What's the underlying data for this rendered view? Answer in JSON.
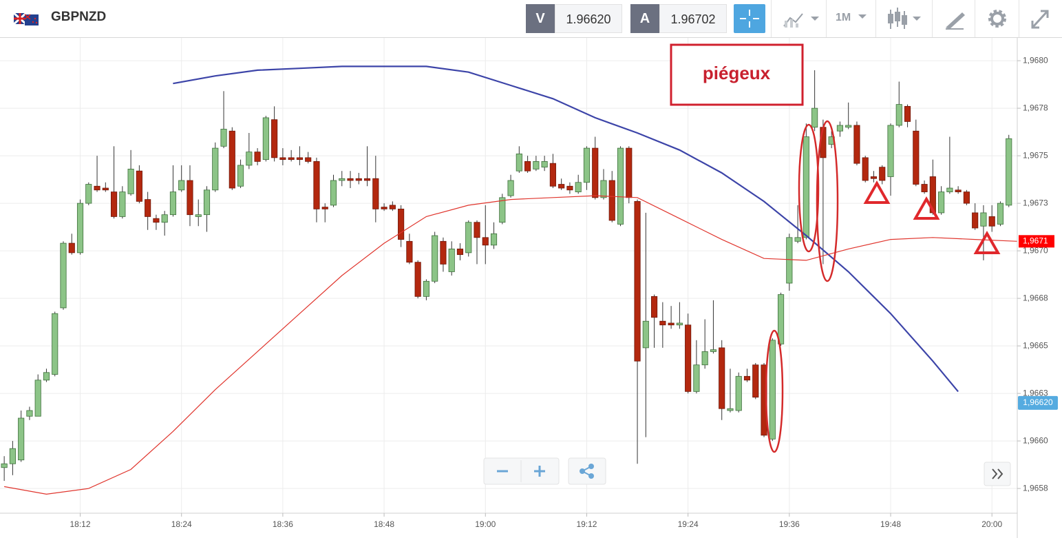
{
  "header": {
    "symbol": "GBPNZD",
    "bid_label": "V",
    "bid": "1.96620",
    "ask_label": "A",
    "ask": "1.96702",
    "timeframe": "1M"
  },
  "chart_data": {
    "type": "candlestick",
    "x": [
      "18:03",
      "18:04",
      "18:05",
      "18:06",
      "18:07",
      "18:08",
      "18:09",
      "18:10",
      "18:11",
      "18:12",
      "18:13",
      "18:14",
      "18:15",
      "18:16",
      "18:17",
      "18:18",
      "18:19",
      "18:20",
      "18:21",
      "18:22",
      "18:23",
      "18:24",
      "18:25",
      "18:26",
      "18:27",
      "18:28",
      "18:29",
      "18:30",
      "18:31",
      "18:32",
      "18:33",
      "18:34",
      "18:35",
      "18:36",
      "18:37",
      "18:38",
      "18:39",
      "18:40",
      "18:41",
      "18:42",
      "18:43",
      "18:44",
      "18:45",
      "18:46",
      "18:47",
      "18:48",
      "18:49",
      "18:50",
      "18:51",
      "18:52",
      "18:53",
      "18:54",
      "18:55",
      "18:56",
      "18:57",
      "18:58",
      "18:59",
      "19:00",
      "19:01",
      "19:02",
      "19:03",
      "19:04",
      "19:05",
      "19:06",
      "19:07",
      "19:08",
      "19:09",
      "19:10",
      "19:11",
      "19:12",
      "19:13",
      "19:14",
      "19:15",
      "19:16",
      "19:17",
      "19:18",
      "19:19",
      "19:20",
      "19:21",
      "19:22",
      "19:23",
      "19:24",
      "19:25",
      "19:26",
      "19:27",
      "19:28",
      "19:29",
      "19:30",
      "19:31",
      "19:32",
      "19:33",
      "19:34",
      "19:35",
      "19:36",
      "19:37",
      "19:38",
      "19:39",
      "19:40",
      "19:41",
      "19:42",
      "19:43",
      "19:44",
      "19:45",
      "19:46",
      "19:47",
      "19:48",
      "19:49",
      "19:50",
      "19:51",
      "19:52",
      "19:53",
      "19:54",
      "19:55",
      "19:56",
      "19:57",
      "19:58",
      "19:59",
      "20:00",
      "20:01",
      "20:02"
    ],
    "open": [
      1.96586,
      1.96588,
      1.9659,
      1.96613,
      1.96613,
      1.96632,
      1.96635,
      1.9667,
      1.96704,
      1.96699,
      1.96725,
      1.96734,
      1.96733,
      1.96731,
      1.96718,
      1.9673,
      1.96742,
      1.96727,
      1.96717,
      1.96715,
      1.96719,
      1.96732,
      1.96737,
      1.96718,
      1.96719,
      1.96732,
      1.96755,
      1.96763,
      1.96734,
      1.96745,
      1.96752,
      1.96748,
      1.96769,
      1.96749,
      1.96749,
      1.96749,
      1.96749,
      1.96747,
      1.96723,
      1.96724,
      1.96737,
      1.96738,
      1.96738,
      1.96738,
      1.96738,
      1.96723,
      1.96724,
      1.96722,
      1.96705,
      1.96694,
      1.96676,
      1.96684,
      1.96705,
      1.96689,
      1.96701,
      1.96699,
      1.96715,
      1.96707,
      1.96703,
      1.96715,
      1.96729,
      1.96742,
      1.96747,
      1.96743,
      1.96744,
      1.96746,
      1.96735,
      1.96734,
      1.96731,
      1.96736,
      1.96754,
      1.96728,
      1.96737,
      1.96714,
      1.96754,
      1.96726,
      1.96649,
      1.96676,
      1.96663,
      1.96662,
      1.96661,
      1.96661,
      1.96626,
      1.9664,
      1.96647,
      1.96649,
      1.96616,
      1.96616,
      1.96634,
      1.9664,
      1.9664,
      1.96601,
      1.96651,
      1.96683,
      1.96705,
      1.96707,
      1.96765,
      1.96765,
      1.96756,
      1.96763,
      1.96765,
      1.96766,
      1.96749,
      1.96739,
      1.96744,
      1.96739,
      1.96766,
      1.96776,
      1.96763,
      1.96735,
      1.96739,
      1.9672,
      1.96731,
      1.96732,
      1.96731,
      1.9672,
      1.96713,
      1.96718,
      1.96714,
      1.96724
    ],
    "high": [
      1.96592,
      1.966,
      1.96616,
      1.96618,
      1.96635,
      1.96638,
      1.96668,
      1.96705,
      1.96709,
      1.96727,
      1.96736,
      1.9675,
      1.96736,
      1.96755,
      1.96734,
      1.96753,
      1.96745,
      1.96731,
      1.96719,
      1.96721,
      1.96745,
      1.96745,
      1.96745,
      1.96727,
      1.96734,
      1.96757,
      1.96784,
      1.96765,
      1.96748,
      1.96762,
      1.96754,
      1.96771,
      1.96776,
      1.96754,
      1.96753,
      1.96755,
      1.96752,
      1.96749,
      1.96725,
      1.9674,
      1.96742,
      1.96742,
      1.96741,
      1.96755,
      1.9675,
      1.96725,
      1.96726,
      1.96724,
      1.96709,
      1.96695,
      1.96685,
      1.9671,
      1.96707,
      1.96705,
      1.96704,
      1.96716,
      1.96716,
      1.96724,
      1.96715,
      1.9673,
      1.9674,
      1.96755,
      1.9675,
      1.9675,
      1.9675,
      1.96751,
      1.96738,
      1.96736,
      1.9674,
      1.96755,
      1.9676,
      1.96743,
      1.96742,
      1.96755,
      1.96755,
      1.96727,
      1.9672,
      1.96677,
      1.96673,
      1.96671,
      1.96673,
      1.96667,
      1.96653,
      1.96664,
      1.96674,
      1.96653,
      1.96638,
      1.96636,
      1.96638,
      1.96641,
      1.96641,
      1.96654,
      1.96678,
      1.96709,
      1.96724,
      1.96767,
      1.96795,
      1.96769,
      1.96763,
      1.96768,
      1.96778,
      1.96768,
      1.9675,
      1.96742,
      1.96745,
      1.96767,
      1.96789,
      1.96777,
      1.96769,
      1.96737,
      1.96748,
      1.96734,
      1.9676,
      1.96734,
      1.96732,
      1.96725,
      1.96724,
      1.96724,
      1.96726,
      1.96761
    ],
    "low": [
      1.96579,
      1.96582,
      1.96589,
      1.96611,
      1.96613,
      1.96631,
      1.96634,
      1.96669,
      1.96698,
      1.96698,
      1.96724,
      1.96731,
      1.96731,
      1.96717,
      1.96717,
      1.96729,
      1.96725,
      1.96711,
      1.96711,
      1.96708,
      1.96718,
      1.96731,
      1.96713,
      1.96713,
      1.9671,
      1.96731,
      1.96754,
      1.96732,
      1.96733,
      1.96743,
      1.96745,
      1.96747,
      1.96747,
      1.96745,
      1.96747,
      1.96745,
      1.96746,
      1.96715,
      1.96715,
      1.96723,
      1.96734,
      1.96733,
      1.96735,
      1.96734,
      1.96715,
      1.96721,
      1.96721,
      1.96702,
      1.96693,
      1.96675,
      1.96674,
      1.96683,
      1.96689,
      1.96687,
      1.96695,
      1.96697,
      1.96693,
      1.96693,
      1.96701,
      1.96714,
      1.96728,
      1.96741,
      1.96741,
      1.96742,
      1.96742,
      1.96733,
      1.96732,
      1.9673,
      1.9673,
      1.96732,
      1.96727,
      1.96727,
      1.96715,
      1.96713,
      1.96725,
      1.96588,
      1.96602,
      1.96649,
      1.96649,
      1.96659,
      1.96659,
      1.96625,
      1.96625,
      1.96638,
      1.96646,
      1.96611,
      1.96615,
      1.96615,
      1.96631,
      1.96622,
      1.96602,
      1.966,
      1.9665,
      1.96679,
      1.96704,
      1.96706,
      1.96763,
      1.96693,
      1.96754,
      1.9676,
      1.96764,
      1.96745,
      1.96736,
      1.96736,
      1.96735,
      1.96729,
      1.96765,
      1.96765,
      1.96734,
      1.9673,
      1.96719,
      1.96719,
      1.9673,
      1.9673,
      1.96724,
      1.96711,
      1.96695,
      1.9671,
      1.96713,
      1.96723
    ],
    "close": [
      1.96588,
      1.96596,
      1.96612,
      1.96616,
      1.96632,
      1.96636,
      1.96667,
      1.96704,
      1.96699,
      1.96725,
      1.96735,
      1.96732,
      1.96732,
      1.96718,
      1.96731,
      1.96743,
      1.96726,
      1.96718,
      1.96715,
      1.96719,
      1.96731,
      1.96737,
      1.96719,
      1.96719,
      1.96732,
      1.96754,
      1.96764,
      1.96733,
      1.96745,
      1.96752,
      1.96747,
      1.9677,
      1.96749,
      1.96748,
      1.96748,
      1.96748,
      1.96747,
      1.96722,
      1.96722,
      1.96737,
      1.96738,
      1.96737,
      1.96737,
      1.96737,
      1.96722,
      1.96722,
      1.96722,
      1.96706,
      1.96694,
      1.96676,
      1.96684,
      1.96708,
      1.96693,
      1.96701,
      1.96698,
      1.96715,
      1.96707,
      1.96703,
      1.96709,
      1.96728,
      1.96737,
      1.96751,
      1.96742,
      1.96747,
      1.96747,
      1.96734,
      1.96733,
      1.96732,
      1.96736,
      1.96754,
      1.96728,
      1.96737,
      1.96716,
      1.96754,
      1.96728,
      1.96642,
      1.96663,
      1.96665,
      1.96661,
      1.96661,
      1.96662,
      1.96626,
      1.9664,
      1.96647,
      1.96648,
      1.96617,
      1.96617,
      1.96634,
      1.96632,
      1.96623,
      1.96603,
      1.96653,
      1.96677,
      1.96707,
      1.96707,
      1.9676,
      1.96775,
      1.96749,
      1.9676,
      1.96766,
      1.96766,
      1.96746,
      1.96737,
      1.96738,
      1.96737,
      1.96766,
      1.96777,
      1.96768,
      1.96735,
      1.96731,
      1.9672,
      1.96731,
      1.96733,
      1.96731,
      1.96725,
      1.96712,
      1.9672,
      1.96713,
      1.96725,
      1.96759
    ],
    "up_color": "#8cc487",
    "down_color": "#b3280f",
    "overlays": [
      {
        "color": "#3c44a8",
        "x": [
          "18:23",
          "18:28",
          "18:33",
          "18:38",
          "18:43",
          "18:48",
          "18:53",
          "18:58",
          "19:03",
          "19:08",
          "19:13",
          "19:18",
          "19:23",
          "19:28",
          "19:33",
          "19:38",
          "19:43",
          "19:48",
          "19:53",
          "19:56"
        ],
        "values": [
          1.96788,
          1.96792,
          1.96795,
          1.96796,
          1.96797,
          1.96797,
          1.96797,
          1.96794,
          1.96787,
          1.9678,
          1.9677,
          1.96762,
          1.96753,
          1.96741,
          1.96726,
          1.96708,
          1.96689,
          1.96667,
          1.96642,
          1.96626
        ]
      },
      {
        "color": "#e0342c",
        "label": "1,9671",
        "x": [
          "18:03",
          "18:08",
          "18:13",
          "18:18",
          "18:23",
          "18:28",
          "18:33",
          "18:38",
          "18:43",
          "18:48",
          "18:53",
          "18:58",
          "19:03",
          "19:08",
          "19:13",
          "19:18",
          "19:23",
          "19:28",
          "19:33",
          "19:38",
          "19:43",
          "19:48",
          "19:53",
          "19:58",
          "20:03"
        ],
        "values": [
          1.96576,
          1.96572,
          1.96575,
          1.96585,
          1.96605,
          1.96627,
          1.96647,
          1.96667,
          1.96687,
          1.96704,
          1.96718,
          1.96724,
          1.96727,
          1.96728,
          1.96729,
          1.96728,
          1.96717,
          1.96706,
          1.96696,
          1.96695,
          1.96701,
          1.96706,
          1.96707,
          1.96706,
          1.96705
        ]
      }
    ],
    "current_price": {
      "value": 1.9662,
      "label": "1,96620"
    },
    "annotations": [
      {
        "text": "piégeux"
      }
    ],
    "xlim": [
      "18:02:30",
      "20:03:00"
    ],
    "ylim": [
      1.96562,
      1.96812
    ],
    "xticks": [
      "18:12",
      "18:24",
      "18:36",
      "18:48",
      "19:00",
      "19:12",
      "19:24",
      "19:36",
      "19:48",
      "20:00"
    ],
    "yticks": [
      {
        "value": 1.968,
        "label": "1,9680"
      },
      {
        "value": 1.96775,
        "label": "1,9678"
      },
      {
        "value": 1.9675,
        "label": "1,9675"
      },
      {
        "value": 1.96725,
        "label": "1,9673"
      },
      {
        "value": 1.967,
        "label": "1,9670"
      },
      {
        "value": 1.96675,
        "label": "1,9668"
      },
      {
        "value": 1.9665,
        "label": "1,9665"
      },
      {
        "value": 1.96625,
        "label": "1,9663"
      },
      {
        "value": 1.966,
        "label": "1,9660"
      },
      {
        "value": 1.96575,
        "label": "1,9658"
      }
    ],
    "grid": true
  }
}
